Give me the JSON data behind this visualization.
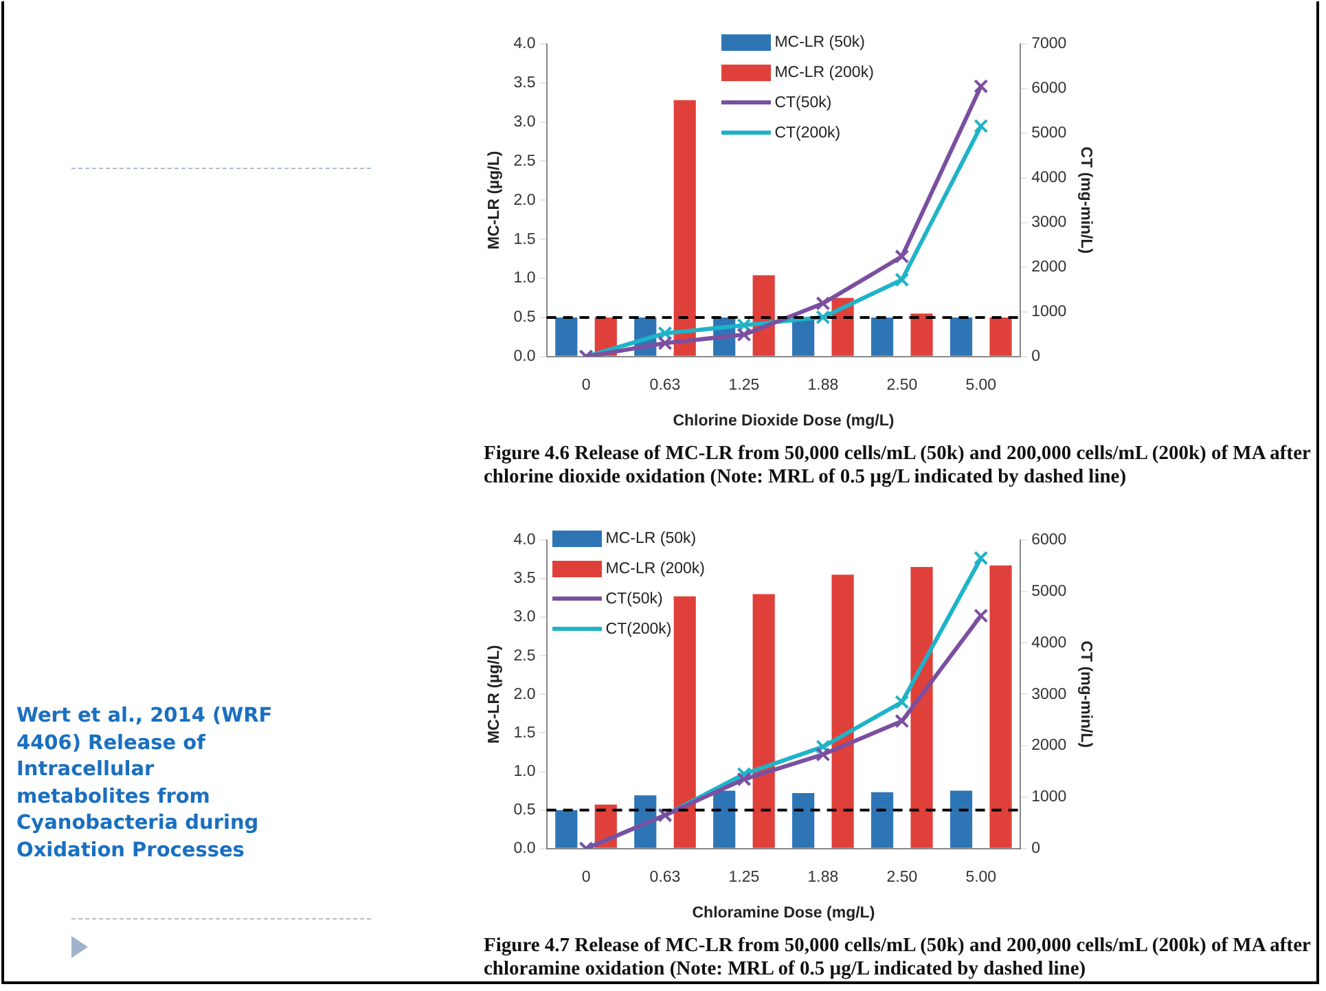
{
  "chart_data": [
    {
      "type": "bar",
      "categories": [
        "0",
        "0.63",
        "1.25",
        "1.88",
        "2.50",
        "5.00"
      ],
      "xlabel": "Chlorine Dioxide Dose (mg/L)",
      "ylabel": "MC-LR (µg/L)",
      "y2label": "CT (mg-min/L)",
      "ylim": [
        0,
        4
      ],
      "yticks": [
        {
          "value": 0,
          "label": "0.0"
        },
        {
          "value": 0.5,
          "label": "0.5"
        },
        {
          "value": 1,
          "label": "1.0"
        },
        {
          "value": 1.5,
          "label": "1.5"
        },
        {
          "value": 2,
          "label": "2.0"
        },
        {
          "value": 2.5,
          "label": "2.5"
        },
        {
          "value": 3,
          "label": "3.0"
        },
        {
          "value": 3.5,
          "label": "3.5"
        },
        {
          "value": 4,
          "label": "4.0"
        }
      ],
      "y2lim": [
        0,
        7000
      ],
      "y2ticks": [
        0,
        1000,
        2000,
        3000,
        4000,
        5000,
        6000,
        7000
      ],
      "legend": "top",
      "series": [
        {
          "name": "MC-LR (50k)",
          "color": "#2e75b6",
          "values": [
            0.5,
            0.5,
            0.5,
            0.5,
            0.5,
            0.5
          ]
        },
        {
          "name": "MC-LR (200k)",
          "color": "#e0403a",
          "values": [
            0.5,
            3.28,
            1.04,
            0.75,
            0.55,
            0.5
          ]
        },
        {
          "name": "CT(50k)",
          "type": "line",
          "axis": "y2",
          "color": "#7b4fa0",
          "marker": "cross",
          "values": [
            0,
            300,
            490,
            1190,
            2240,
            6050
          ]
        },
        {
          "name": "CT(200k)",
          "type": "line",
          "axis": "y2",
          "color": "#1fb3c8",
          "marker": "cross",
          "values": [
            0,
            520,
            700,
            880,
            1720,
            5160
          ]
        }
      ],
      "ref_lines": [
        {
          "axis": "y",
          "value": 0.5,
          "color": "#000000",
          "line_style": "dashed"
        }
      ],
      "annotations": [
        "Figure 4.6  Release of MC-LR from 50,000 cells/mL (50k) and 200,000 cells/mL (200k) of MA after chlorine dioxide oxidation (Note: MRL of 0.5 µg/L indicated by dashed line)"
      ]
    },
    {
      "type": "bar",
      "categories": [
        "0",
        "0.63",
        "1.25",
        "1.88",
        "2.50",
        "5.00"
      ],
      "xlabel": "Chloramine Dose (mg/L)",
      "ylabel": "MC-LR (µg/L)",
      "y2label": "CT (mg-min/L)",
      "ylim": [
        0,
        4
      ],
      "yticks": [
        {
          "value": 0,
          "label": "0.0"
        },
        {
          "value": 0.5,
          "label": "0.5"
        },
        {
          "value": 1,
          "label": "1.0"
        },
        {
          "value": 1.5,
          "label": "1.5"
        },
        {
          "value": 2,
          "label": "2.0"
        },
        {
          "value": 2.5,
          "label": "2.5"
        },
        {
          "value": 3,
          "label": "3.0"
        },
        {
          "value": 3.5,
          "label": "3.5"
        },
        {
          "value": 4,
          "label": "4.0"
        }
      ],
      "y2lim": [
        0,
        6000
      ],
      "y2ticks": [
        0,
        1000,
        2000,
        3000,
        4000,
        5000,
        6000
      ],
      "legend": "top left",
      "series": [
        {
          "name": "MC-LR (50k)",
          "color": "#2e75b6",
          "values": [
            0.5,
            0.69,
            0.75,
            0.72,
            0.73,
            0.75
          ]
        },
        {
          "name": "MC-LR (200k)",
          "color": "#e0403a",
          "values": [
            0.57,
            3.27,
            3.3,
            3.55,
            3.65,
            3.67
          ]
        },
        {
          "name": "CT(50k)",
          "type": "line",
          "axis": "y2",
          "color": "#7b4fa0",
          "marker": "cross",
          "values": [
            0,
            650,
            1350,
            1830,
            2480,
            4530
          ]
        },
        {
          "name": "CT(200k)",
          "type": "line",
          "axis": "y2",
          "color": "#1fb3c8",
          "marker": "cross",
          "values": [
            0,
            650,
            1450,
            1980,
            2850,
            5650
          ]
        }
      ],
      "ref_lines": [
        {
          "axis": "y",
          "value": 0.5,
          "color": "#000000",
          "line_style": "dashed"
        }
      ],
      "annotations": [
        "Figure 4.7  Release of MC-LR from 50,000 cells/mL (50k) and 200,000 cells/mL (200k) of MA after chloramine oxidation (Note: MRL of 0.5 µg/L indicated by dashed line)",
        "Wert et al., 2014 (WRF 4406) Release of Intracellular metabolites from Cyanobacteria during Oxidation Processes"
      ]
    }
  ]
}
